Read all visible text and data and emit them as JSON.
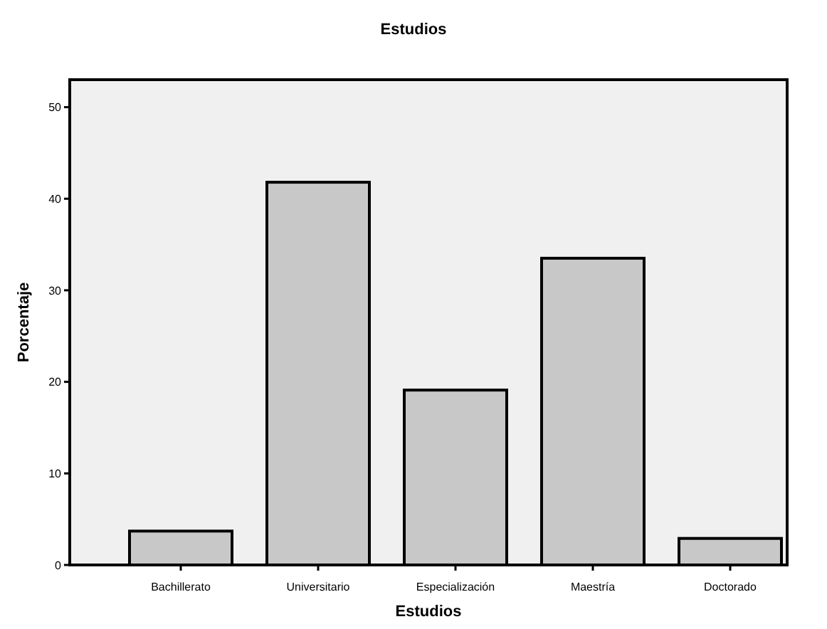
{
  "chart_data": {
    "type": "bar",
    "title": "Estudios",
    "xlabel": "Estudios",
    "ylabel": "Porcentaje",
    "categories": [
      "Bachillerato",
      "Universitario",
      "Especialización",
      "Maestría",
      "Doctorado"
    ],
    "values": [
      3.7,
      41.8,
      19.1,
      33.5,
      2.9
    ],
    "color": "#c8c8c8",
    "ylim": [
      0,
      53
    ],
    "yticks": [
      0,
      10,
      20,
      30,
      40,
      50
    ],
    "grid": false
  }
}
